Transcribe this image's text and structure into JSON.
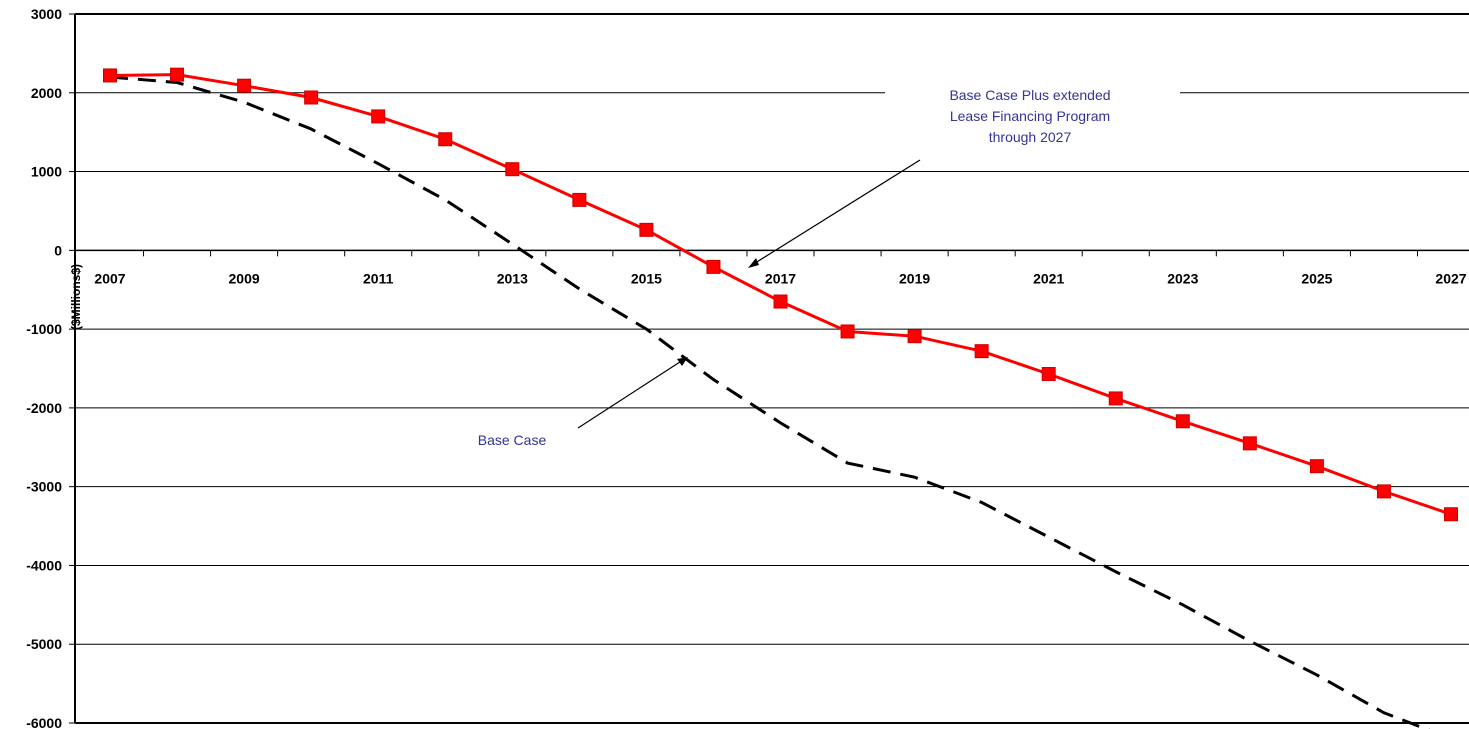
{
  "chart_data": {
    "type": "line",
    "ylabel": "($Millions$)",
    "ylim": [
      -6000,
      3000
    ],
    "xlim": [
      2007,
      2027
    ],
    "grid": "horizontal",
    "yticks": [
      "3000",
      "2000",
      "1000",
      "0",
      "-1000",
      "-2000",
      "-3000",
      "-4000",
      "-5000",
      "-6000"
    ],
    "xticks": [
      "2007",
      "2009",
      "2011",
      "2013",
      "2015",
      "2017",
      "2019",
      "2021",
      "2023",
      "2025",
      "2027"
    ],
    "x": [
      2007,
      2008,
      2009,
      2010,
      2011,
      2012,
      2013,
      2014,
      2015,
      2016,
      2017,
      2018,
      2019,
      2020,
      2021,
      2022,
      2023,
      2024,
      2025,
      2026,
      2027
    ],
    "series": [
      {
        "name": "Base Case Plus extended Lease Financing Program through 2027",
        "color": "#ff0000",
        "style": "solid-square-markers",
        "values": [
          2220,
          2230,
          2090,
          1940,
          1700,
          1410,
          1030,
          640,
          260,
          -210,
          -650,
          -1030,
          -1090,
          -1280,
          -1570,
          -1880,
          -2170,
          -2450,
          -2740,
          -3060,
          -3350
        ]
      },
      {
        "name": "Base Case",
        "color": "#000000",
        "style": "dashed",
        "values": [
          2200,
          2130,
          1880,
          1540,
          1100,
          640,
          80,
          -490,
          -1000,
          -1640,
          -2190,
          -2700,
          -2880,
          -3200,
          -3640,
          -4080,
          -4500,
          -4960,
          -5390,
          -5870,
          -6200
        ]
      }
    ],
    "annotations": [
      {
        "lines": [
          "Base Case Plus extended",
          "Lease Financing Program",
          "through 2027"
        ],
        "points_to": "Base Case Plus extended Lease Financing Program through 2027"
      },
      {
        "lines": [
          "Base Case"
        ],
        "points_to": "Base Case"
      }
    ]
  }
}
